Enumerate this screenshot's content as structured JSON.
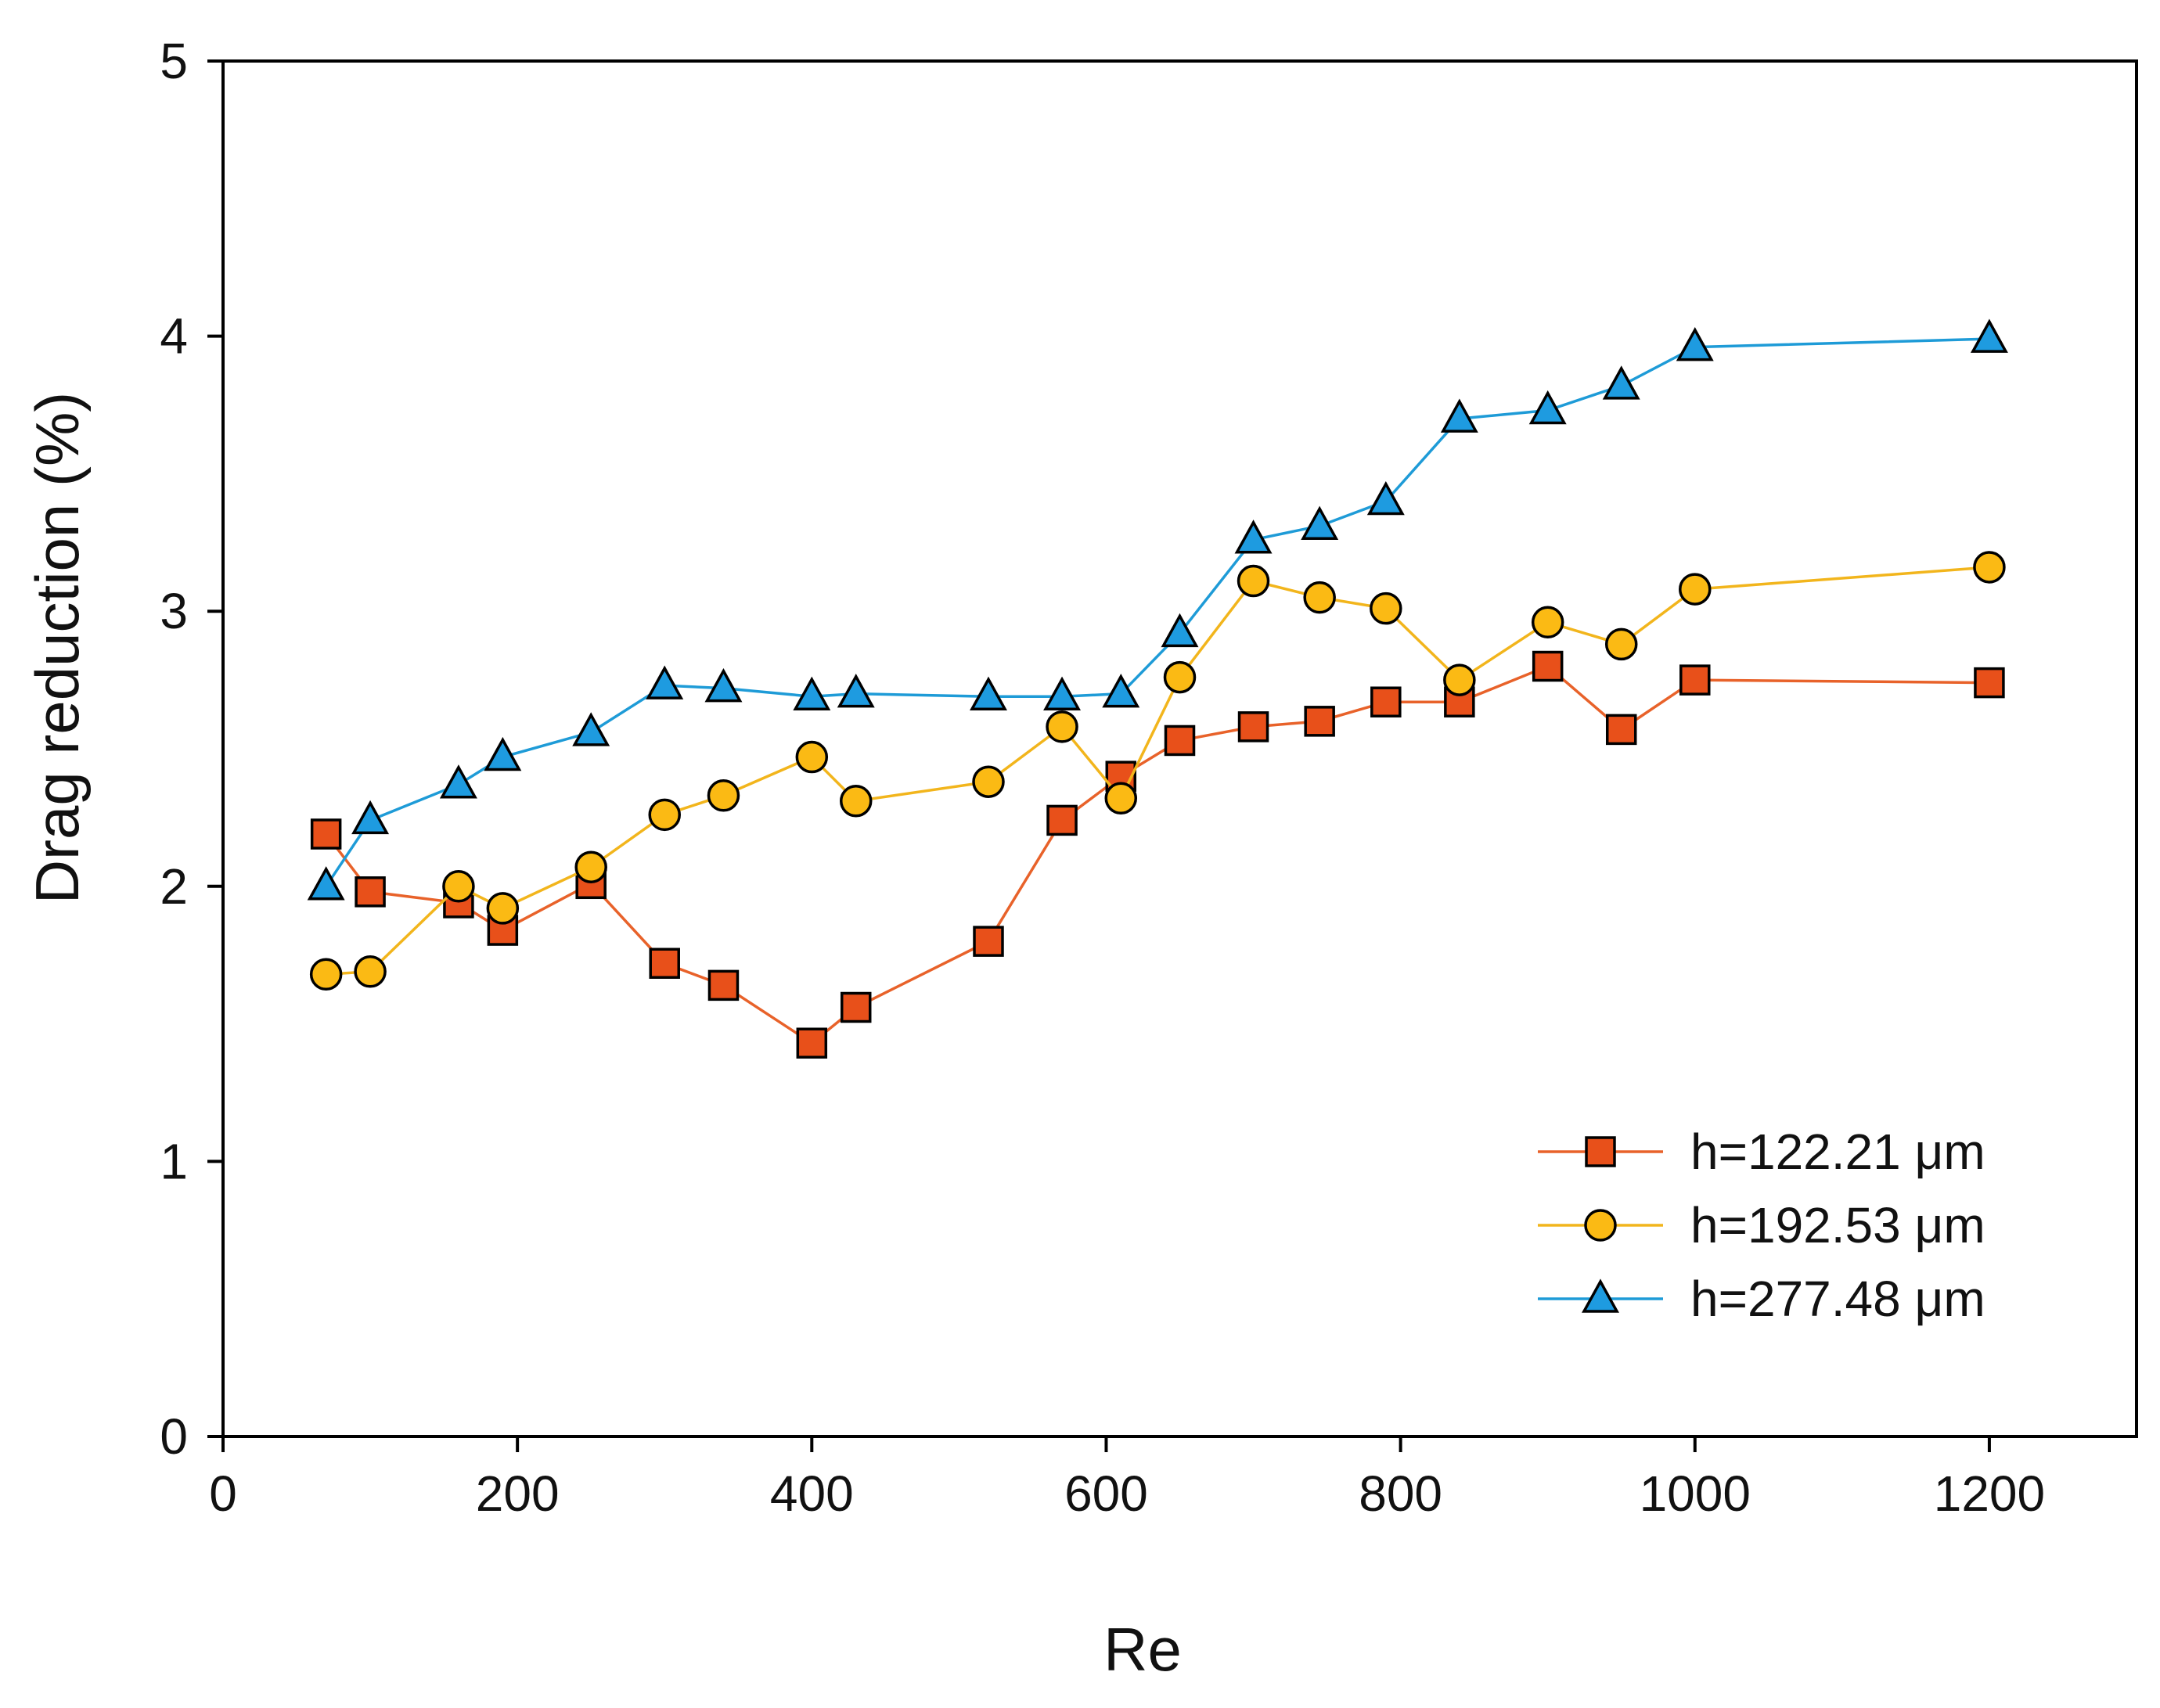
{
  "chart_data": {
    "type": "line",
    "title": "",
    "xlabel": "Re",
    "ylabel": "Drag reduction (%)",
    "xlim": [
      0,
      1300
    ],
    "ylim": [
      0,
      5
    ],
    "xticks": [
      0,
      200,
      400,
      600,
      800,
      1000,
      1200
    ],
    "yticks": [
      0,
      1,
      2,
      3,
      4,
      5
    ],
    "grid": false,
    "legend_position": "bottom-right",
    "series": [
      {
        "name": "h=122.21 μm",
        "marker": "square",
        "line_color": "#E8622A",
        "marker_fill": "#E8501A",
        "x": [
          70,
          100,
          160,
          190,
          250,
          300,
          340,
          400,
          430,
          520,
          570,
          610,
          650,
          700,
          745,
          790,
          840,
          900,
          950,
          1000,
          1200
        ],
        "y": [
          2.19,
          1.98,
          1.94,
          1.84,
          2.01,
          1.72,
          1.64,
          1.43,
          1.56,
          1.8,
          2.24,
          2.4,
          2.53,
          2.58,
          2.6,
          2.67,
          2.67,
          2.8,
          2.57,
          2.75,
          2.74
        ]
      },
      {
        "name": "h=192.53 μm",
        "marker": "circle",
        "line_color": "#F2B51C",
        "marker_fill": "#FBBA14",
        "x": [
          70,
          100,
          160,
          190,
          250,
          300,
          340,
          400,
          430,
          520,
          570,
          610,
          650,
          700,
          745,
          790,
          840,
          900,
          950,
          1000,
          1200
        ],
        "y": [
          1.68,
          1.69,
          2.0,
          1.92,
          2.07,
          2.26,
          2.33,
          2.47,
          2.31,
          2.38,
          2.58,
          2.32,
          2.76,
          3.11,
          3.05,
          3.01,
          2.75,
          2.96,
          2.88,
          3.08,
          3.16
        ]
      },
      {
        "name": "h=277.48 μm",
        "marker": "triangle",
        "line_color": "#1E9BD7",
        "marker_fill": "#1E9BE0",
        "x": [
          70,
          100,
          160,
          190,
          250,
          300,
          340,
          400,
          430,
          520,
          570,
          610,
          650,
          700,
          745,
          790,
          840,
          900,
          950,
          1000,
          1200
        ],
        "y": [
          2.0,
          2.24,
          2.37,
          2.47,
          2.56,
          2.73,
          2.72,
          2.69,
          2.7,
          2.69,
          2.69,
          2.7,
          2.92,
          3.26,
          3.31,
          3.4,
          3.7,
          3.73,
          3.82,
          3.96,
          3.99
        ]
      }
    ]
  }
}
